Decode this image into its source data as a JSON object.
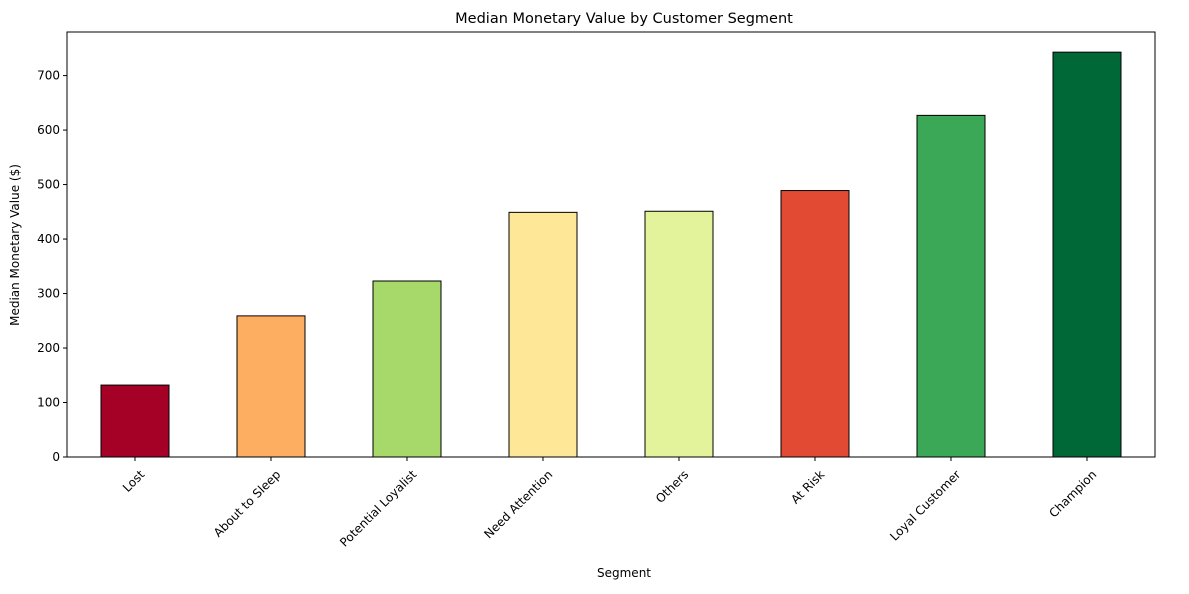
{
  "chart_data": {
    "type": "bar",
    "title": "Median Monetary Value by Customer Segment",
    "xlabel": "Segment",
    "ylabel": "Median Monetary Value ($)",
    "categories": [
      "Lost",
      "About to Sleep",
      "Potential Loyalist",
      "Need Attention",
      "Others",
      "At Risk",
      "Loyal Customer",
      "Champion"
    ],
    "values": [
      132,
      259,
      323,
      449,
      451,
      489,
      627,
      743
    ],
    "colors": [
      "#a50026",
      "#fdae61",
      "#a6d96a",
      "#fee898",
      "#e3f39b",
      "#e34a33",
      "#3aa857",
      "#006837"
    ],
    "edgecolor": "#000000",
    "ylim": [
      0,
      780
    ],
    "yticks": [
      0,
      100,
      200,
      300,
      400,
      500,
      600,
      700
    ],
    "grid": false,
    "legend": "none"
  }
}
